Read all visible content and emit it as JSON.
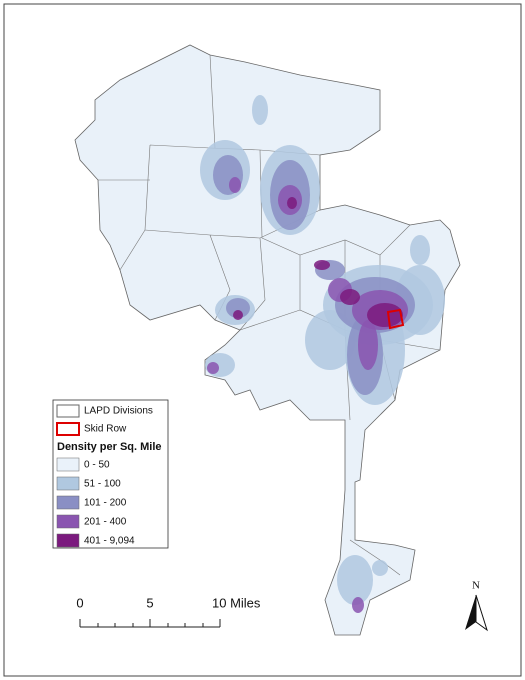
{
  "legend": {
    "items": [
      {
        "label": "LAPD Divisions"
      },
      {
        "label": "Skid Row"
      }
    ],
    "title": "Density per Sq. Mile",
    "classes": [
      "0 - 50",
      "51 - 100",
      "101 - 200",
      "201 - 400",
      "401 - 9,094"
    ]
  },
  "scale_bar": {
    "labels": [
      "0",
      "5",
      "10 Miles"
    ]
  },
  "north_arrow": {
    "label": "N"
  }
}
